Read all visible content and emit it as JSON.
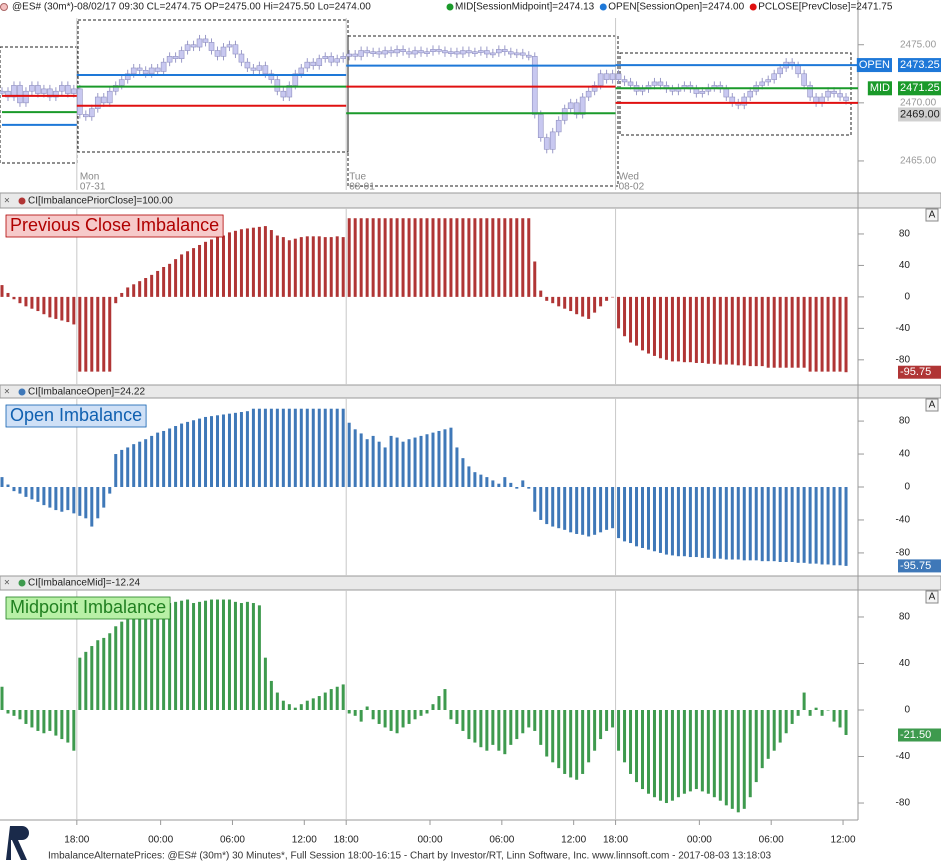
{
  "chart_data": [
    {
      "type": "line",
      "header": "@ES# (30m*)-08/02/17 09:30 CL=2474.75 OP=2475.00 Hi=2475.50 Lo=2474.00",
      "ylim": [
        2462.5,
        2477.3
      ],
      "yticks": [
        {
          "value": 2475,
          "label": "2475.00"
        },
        {
          "value": 2470,
          "label": "2470.00"
        },
        {
          "value": 2465,
          "label": "2465.00"
        }
      ],
      "days": [
        {
          "value": 12.5,
          "label": "Mon",
          "date": "07-31"
        },
        {
          "value": 57.5,
          "label": "Tue",
          "date": "08-01"
        },
        {
          "value": 102.5,
          "label": "Wed",
          "date": "08-02"
        }
      ],
      "series": [
        {
          "name": "@ES#",
          "color": "#c8c8f0",
          "values": [
            2471,
            2470.5,
            2471.5,
            2470,
            2471,
            2471.5,
            2470.8,
            2471.2,
            2470.5,
            2471,
            2471.5,
            2470.8,
            2471.2,
            2469,
            2468.8,
            2469.5,
            2470.5,
            2470,
            2471,
            2471.5,
            2472,
            2472.5,
            2473,
            2472.8,
            2472.5,
            2473,
            2472.7,
            2473.5,
            2474,
            2473.8,
            2474.5,
            2475,
            2474.8,
            2475.5,
            2475.2,
            2474.5,
            2474,
            2474.8,
            2475,
            2474.2,
            2473.5,
            2473,
            2472.8,
            2473.2,
            2472.5,
            2472,
            2471,
            2470.5,
            2471.5,
            2472.5,
            2473,
            2473.5,
            2473.2,
            2473.8,
            2474,
            2473.5,
            2473.8,
            2474,
            2474.2,
            2474,
            2474.5,
            2474.3,
            2474.4,
            2474.2,
            2474.5,
            2474.3,
            2474.6,
            2474.4,
            2474.2,
            2474.5,
            2474.3,
            2474.4,
            2474.6,
            2474.5,
            2474.3,
            2474.4,
            2474.2,
            2474.5,
            2474.3,
            2474.4,
            2474.5,
            2474.2,
            2474.3,
            2474.6,
            2474.4,
            2474.2,
            2474.3,
            2474.1,
            2474,
            2469,
            2467,
            2466,
            2467.5,
            2468.5,
            2469.5,
            2470,
            2469,
            2470.5,
            2471,
            2471.5,
            2472.5,
            2472,
            2472.5,
            2472,
            2471.8,
            2471.5,
            2471,
            2471.2,
            2471.5,
            2471.8,
            2471.5,
            2471.2,
            2471,
            2471.3,
            2471.5,
            2471.2,
            2470.8,
            2471,
            2471.3,
            2471.5,
            2471.2,
            2470.5,
            2470,
            2469.8,
            2470.5,
            2471,
            2471.5,
            2471.8,
            2472,
            2472.5,
            2473,
            2473.5,
            2473.2,
            2472.5,
            2471.5,
            2470.5,
            2470,
            2470.5,
            2471,
            2470.8,
            2470.5,
            2470.2
          ]
        }
      ],
      "levels": [
        {
          "name": "MID[SessionMidpoint]=2474.13",
          "label": "MID",
          "color": "#1a9a2a",
          "values": [
            2469.2,
            2471.4,
            2469.1,
            2471.25
          ],
          "value_labels": [
            null,
            null,
            null,
            "2471.25"
          ]
        },
        {
          "name": "OPEN[SessionOpen]=2474.00",
          "label": "OPEN",
          "color": "#1e78d8",
          "values": [
            2468.1,
            2472.4,
            2473.2,
            2473.25
          ],
          "value_labels": [
            null,
            null,
            null,
            "2473.25"
          ]
        },
        {
          "name": "PCLOSE[PrevClose]=2471.75",
          "color": "#e01010",
          "values": [
            2470.6,
            2469.75,
            2471.4,
            2470
          ]
        }
      ],
      "price_marker": {
        "value": 2469,
        "label": "2469.00"
      }
    },
    {
      "type": "bar",
      "header": "CI[ImbalancePriorClose]=100.00",
      "title": "Previous Close Imbalance",
      "button": "A",
      "color": "#b03535",
      "box": "#f6caca",
      "ink": "#b00000",
      "ylim": [
        -112,
        113
      ],
      "yticks": [
        80,
        40,
        0,
        -40,
        -80
      ],
      "current_label": "-95.75",
      "values": [
        15,
        5,
        -3,
        -8,
        -12,
        -15,
        -18,
        -22,
        -26,
        -28,
        -30,
        -32,
        -35,
        -95,
        -95,
        -95,
        -95,
        -95,
        -95,
        -8,
        5,
        12,
        16,
        20,
        24,
        28,
        33,
        38,
        42,
        48,
        54,
        58,
        62,
        66,
        70,
        73,
        76,
        78,
        82,
        84,
        86,
        87,
        88,
        89,
        90,
        85,
        78,
        76,
        72,
        74,
        76,
        77,
        77,
        77,
        76,
        76,
        77,
        76,
        100,
        100,
        100,
        100,
        100,
        100,
        100,
        100,
        100,
        100,
        100,
        100,
        100,
        100,
        100,
        100,
        100,
        100,
        100,
        100,
        100,
        100,
        100,
        100,
        100,
        100,
        100,
        100,
        100,
        100,
        100,
        45,
        8,
        -5,
        -8,
        -12,
        -15,
        -18,
        -22,
        -25,
        -28,
        -20,
        -12,
        -5,
        0,
        -40,
        -50,
        -58,
        -62,
        -68,
        -72,
        -75,
        -78,
        -80,
        -82,
        -82,
        -83,
        -83,
        -84,
        -84,
        -85,
        -85,
        -86,
        -86,
        -86,
        -87,
        -87,
        -88,
        -88,
        -88,
        -90,
        -90,
        -90,
        -90,
        -90,
        -90,
        -90,
        -95,
        -95,
        -95,
        -95,
        -95,
        -95,
        -95.75
      ]
    },
    {
      "type": "bar",
      "header": "CI[ImbalanceOpen]=24.22",
      "title": "Open Imbalance",
      "button": "A",
      "color": "#3f78b8",
      "box": "#cfe0f6",
      "ink": "#1060b0",
      "ylim": [
        -108,
        108
      ],
      "yticks": [
        80,
        40,
        0,
        -40,
        -80
      ],
      "current_label": "-95.75",
      "values": [
        12,
        3,
        -5,
        -8,
        -12,
        -15,
        -18,
        -22,
        -25,
        -28,
        -30,
        -28,
        -32,
        -35,
        -38,
        -48,
        -38,
        -25,
        -8,
        40,
        45,
        48,
        52,
        55,
        58,
        62,
        66,
        68,
        71,
        74,
        77,
        79,
        81,
        83,
        85,
        86,
        87,
        88,
        89,
        90,
        91,
        92,
        95,
        95,
        95,
        95,
        95,
        95,
        95,
        95,
        95,
        95,
        95,
        95,
        95,
        95,
        95,
        95,
        78,
        70,
        65,
        58,
        62,
        55,
        48,
        62,
        60,
        55,
        58,
        60,
        62,
        64,
        66,
        68,
        70,
        72,
        48,
        35,
        25,
        18,
        15,
        12,
        8,
        4,
        12,
        5,
        -2,
        8,
        -2,
        -30,
        -40,
        -45,
        -48,
        -50,
        -52,
        -55,
        -57,
        -58,
        -60,
        -58,
        -55,
        -52,
        -50,
        -62,
        -66,
        -68,
        -72,
        -74,
        -76,
        -78,
        -80,
        -82,
        -83,
        -84,
        -84,
        -85,
        -85,
        -86,
        -86,
        -87,
        -87,
        -88,
        -88,
        -88,
        -89,
        -89,
        -89,
        -90,
        -90,
        -90,
        -91,
        -91,
        -91,
        -92,
        -92,
        -93,
        -93,
        -94,
        -94,
        -95,
        -95,
        -95.75
      ]
    },
    {
      "type": "bar",
      "header": "CI[ImbalanceMid]=-12.24",
      "title": "Midpoint Imbalance",
      "button": "A",
      "color": "#3e9a4e",
      "box": "#b8f0a6",
      "ink": "#208020",
      "ylim": [
        -94.6,
        103.2
      ],
      "yticks": [
        80,
        40,
        0,
        -40,
        -80
      ],
      "current_label": "-21.50",
      "values": [
        20,
        -3,
        -5,
        -8,
        -12,
        -15,
        -18,
        -20,
        -18,
        -22,
        -25,
        -28,
        -35,
        45,
        50,
        55,
        60,
        62,
        66,
        72,
        76,
        78,
        80,
        84,
        86,
        88,
        90,
        91,
        92,
        93,
        94,
        95,
        92,
        93,
        94,
        95,
        95,
        95,
        95,
        93,
        92,
        93,
        92,
        90,
        45,
        25,
        15,
        8,
        5,
        2,
        5,
        8,
        10,
        12,
        15,
        18,
        20,
        22,
        -3,
        -5,
        -10,
        3,
        -8,
        -12,
        -15,
        -18,
        -20,
        -15,
        -12,
        -8,
        -5,
        -3,
        5,
        12,
        18,
        -8,
        -12,
        -18,
        -25,
        -28,
        -32,
        -35,
        -30,
        -35,
        -38,
        -30,
        -25,
        -20,
        -15,
        -18,
        -30,
        -40,
        -45,
        -50,
        -55,
        -58,
        -60,
        -55,
        -45,
        -35,
        -25,
        -18,
        -15,
        -35,
        -45,
        -55,
        -62,
        -68,
        -72,
        -75,
        -78,
        -80,
        -78,
        -75,
        -72,
        -70,
        -68,
        -70,
        -72,
        -75,
        -78,
        -82,
        -85,
        -88,
        -85,
        -75,
        -62,
        -50,
        -42,
        -35,
        -28,
        -20,
        -12,
        -5,
        15,
        -5,
        2,
        -5,
        0,
        -10,
        -15,
        -21.5
      ],
      "xlim": [
        0,
        143
      ],
      "xticks": [
        {
          "value": 12.5,
          "label": "18:00"
        },
        {
          "value": 26.5,
          "label": "00:00"
        },
        {
          "value": 38.5,
          "label": "06:00"
        },
        {
          "value": 50.5,
          "label": "12:00"
        },
        {
          "value": 57.5,
          "label": "18:00"
        },
        {
          "value": 71.5,
          "label": "00:00"
        },
        {
          "value": 83.5,
          "label": "06:00"
        },
        {
          "value": 95.5,
          "label": "12:00"
        },
        {
          "value": 102.5,
          "label": "18:00"
        },
        {
          "value": 116.5,
          "label": "00:00"
        },
        {
          "value": 128.5,
          "label": "06:00"
        },
        {
          "value": 140.5,
          "label": "12:00"
        }
      ]
    }
  ],
  "footer": "ImbalanceAlternatePrices: @ES# (30m*) 30 Minutes*, Full Session 18:00-16:15 - Chart by Investor/RT, Linn Software, Inc. www.linnsoft.com - 2017-08-03 13:18:03"
}
